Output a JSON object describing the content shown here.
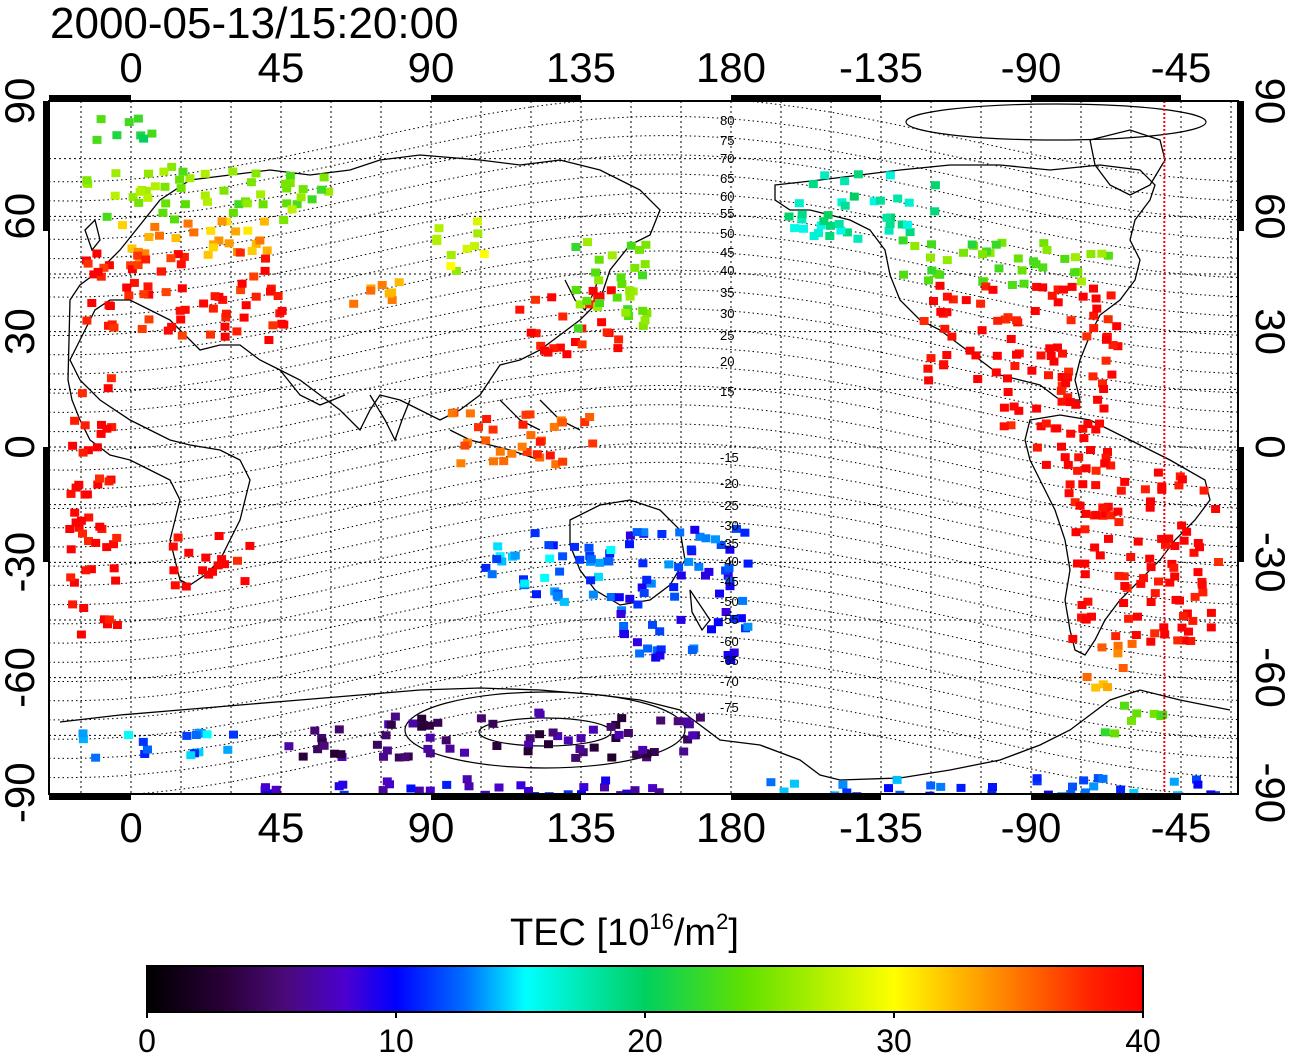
{
  "title": "2000-05-13/15:20:00",
  "axes": {
    "lon_ticks": [
      "0",
      "45",
      "90",
      "135",
      "180",
      "-135",
      "-90",
      "-45"
    ],
    "lat_ticks": [
      "90",
      "60",
      "30",
      "0",
      "-30",
      "-60",
      "-90"
    ]
  },
  "mlat_labels": {
    "north": [
      "80",
      "75",
      "70",
      "65",
      "60",
      "55",
      "50",
      "45",
      "40",
      "35",
      "30",
      "25",
      "20",
      "15"
    ],
    "south": [
      "-15",
      "-20",
      "-25",
      "-30",
      "-35",
      "-40",
      "-45",
      "-50",
      "-55",
      "-60",
      "-65",
      "-70",
      "-75"
    ]
  },
  "colorbar": {
    "label_main": "TEC  [10",
    "label_exp1": "16",
    "label_mid": "/m",
    "label_exp2": "2",
    "label_end": "]",
    "ticks": [
      "0",
      "10",
      "20",
      "30",
      "40"
    ],
    "min": 0,
    "max": 40
  },
  "marker_line": {
    "longitude": -50,
    "color": "#ff0000"
  },
  "tec_regions": [
    {
      "lon": [
        -15,
        5
      ],
      "lat": [
        88,
        80
      ],
      "tec": 22
    },
    {
      "lon": [
        -15,
        60
      ],
      "lat": [
        74,
        60
      ],
      "tec": 25
    },
    {
      "lon": [
        -15,
        40
      ],
      "lat": [
        60,
        50
      ],
      "tec": 33
    },
    {
      "lon": [
        -15,
        45
      ],
      "lat": [
        52,
        28
      ],
      "tec": 39
    },
    {
      "lon": [
        65,
        80
      ],
      "lat": [
        45,
        38
      ],
      "tec": 35
    },
    {
      "lon": [
        90,
        105
      ],
      "lat": [
        60,
        45
      ],
      "tec": 28
    },
    {
      "lon": [
        115,
        145
      ],
      "lat": [
        42,
        25
      ],
      "tec": 39
    },
    {
      "lon": [
        130,
        155
      ],
      "lat": [
        55,
        30
      ],
      "tec": 24
    },
    {
      "lon": [
        95,
        140
      ],
      "lat": [
        10,
        -5
      ],
      "tec": 37
    },
    {
      "lon": [
        -20,
        -5
      ],
      "lat": [
        20,
        -48
      ],
      "tec": 40
    },
    {
      "lon": [
        10,
        35
      ],
      "lat": [
        -22,
        -36
      ],
      "tec": 40
    },
    {
      "lon": [
        105,
        145
      ],
      "lat": [
        -20,
        -40
      ],
      "tec": 13
    },
    {
      "lon": [
        145,
        185
      ],
      "lat": [
        -20,
        -55
      ],
      "tec": 11
    },
    {
      "lon": [
        -165,
        -120
      ],
      "lat": [
        72,
        55
      ],
      "tec": 18
    },
    {
      "lon": [
        -130,
        -65
      ],
      "lat": [
        55,
        43
      ],
      "tec": 24
    },
    {
      "lon": [
        -125,
        -65
      ],
      "lat": [
        43,
        18
      ],
      "tec": 40
    },
    {
      "lon": [
        -100,
        -65
      ],
      "lat": [
        18,
        -5
      ],
      "tec": 40
    },
    {
      "lon": [
        -80,
        -35
      ],
      "lat": [
        -5,
        -50
      ],
      "tec": 40
    },
    {
      "lon": [
        -75,
        -60
      ],
      "lat": [
        -50,
        -62
      ],
      "tec": 34
    },
    {
      "lon": [
        -70,
        -50
      ],
      "lat": [
        -66,
        -74
      ],
      "tec": 24
    },
    {
      "lon": [
        -20,
        30
      ],
      "lat": [
        -73,
        -80
      ],
      "tec": 13
    },
    {
      "lon": [
        45,
        170
      ],
      "lat": [
        -68,
        -80
      ],
      "tec": 5
    },
    {
      "lon": [
        25,
        160
      ],
      "lat": [
        -85,
        -90
      ],
      "tec": 9
    },
    {
      "lon": [
        -170,
        -30
      ],
      "lat": [
        -85,
        -90
      ],
      "tec": 12
    }
  ]
}
